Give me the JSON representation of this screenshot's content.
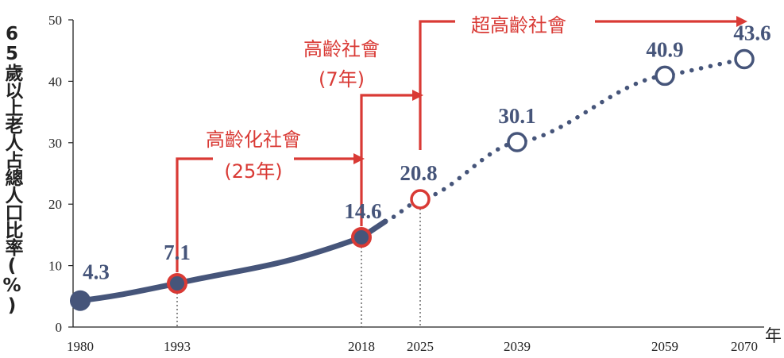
{
  "chart_data": {
    "type": "line",
    "title": "",
    "xlabel": "年",
    "ylabel": "65歲以上老人占總人口比率(%)",
    "ylim": [
      0,
      50
    ],
    "yticks": [
      "0",
      "10",
      "20",
      "30",
      "40",
      "50"
    ],
    "xticks": [
      "1980",
      "1993",
      "2018",
      "2025",
      "2039",
      "2059",
      "2070"
    ],
    "grid": false,
    "series": [
      {
        "segment": "actual",
        "style": "solid",
        "points": [
          {
            "x": 1980,
            "y": 4.3,
            "label": "4.3"
          },
          {
            "x": 1993,
            "y": 7.1,
            "label": "7.1"
          },
          {
            "x": 2018,
            "y": 14.6,
            "label": "14.6"
          }
        ]
      },
      {
        "segment": "projected",
        "style": "dotted",
        "points": [
          {
            "x": 2025,
            "y": 20.8,
            "label": "20.8"
          },
          {
            "x": 2039,
            "y": 30.1,
            "label": "30.1"
          },
          {
            "x": 2059,
            "y": 40.9,
            "label": "40.9"
          },
          {
            "x": 2070,
            "y": 43.6,
            "label": "43.6"
          }
        ]
      }
    ],
    "annotations": [
      {
        "lines": [
          "高齡化社會",
          "(25年)"
        ],
        "from_x": 1993,
        "to_x": 2018
      },
      {
        "lines": [
          "高齡社會",
          "(7年)"
        ],
        "from_x": 2018,
        "to_x": 2025
      },
      {
        "lines": [
          "超高齡社會"
        ],
        "from_x": 2025,
        "to_x": 2070
      }
    ],
    "colors": {
      "line": "#46557a",
      "milestone": "#d93a35",
      "axis": "#222222"
    }
  }
}
